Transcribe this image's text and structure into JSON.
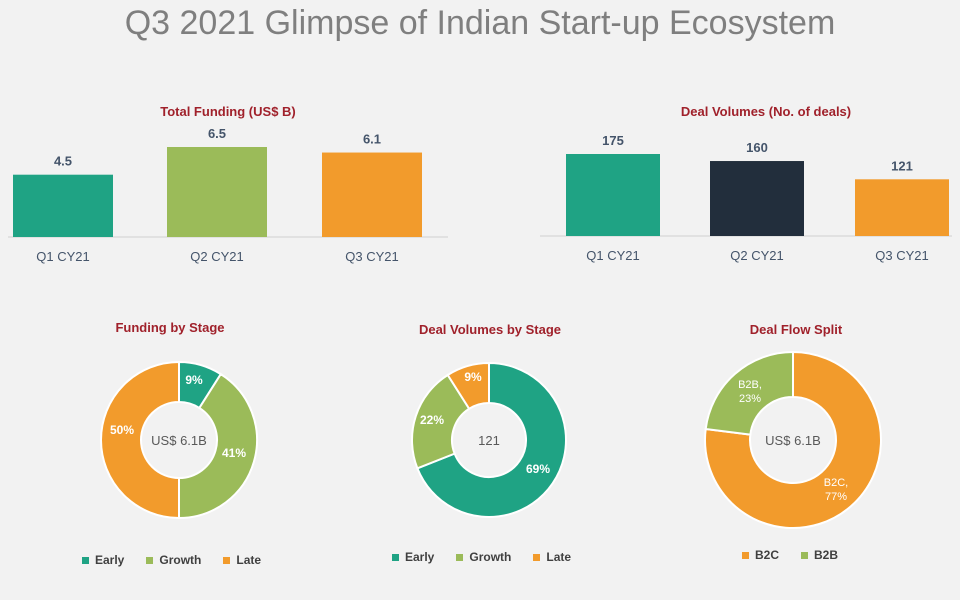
{
  "page": {
    "title": "Q3 2021 Glimpse of Indian Start-up Ecosystem"
  },
  "colors": {
    "teal": "#1fa384",
    "green": "#9bbb59",
    "orange": "#f29b2c",
    "navy": "#222e3c"
  },
  "chart_data": [
    {
      "type": "bar",
      "title": "Total Funding (US$ B)",
      "categories": [
        "Q1 CY21",
        "Q2 CY21",
        "Q3 CY21"
      ],
      "values": [
        4.5,
        6.5,
        6.1
      ],
      "value_labels": [
        "4.5",
        "6.5",
        "6.1"
      ],
      "colors": [
        "#1fa384",
        "#9bbb59",
        "#f29b2c"
      ],
      "ylim": [
        0,
        6.5
      ]
    },
    {
      "type": "bar",
      "title": "Deal Volumes (No. of deals)",
      "categories": [
        "Q1 CY21",
        "Q2 CY21",
        "Q3 CY21"
      ],
      "values": [
        175,
        160,
        121
      ],
      "value_labels": [
        "175",
        "160",
        "121"
      ],
      "colors": [
        "#1fa384",
        "#222e3c",
        "#f29b2c"
      ],
      "ylim": [
        0,
        175
      ]
    },
    {
      "type": "pie",
      "title": "Funding by Stage",
      "center_label": "US$ 6.1B",
      "slices": [
        {
          "name": "Early",
          "value": 9,
          "label": "9%",
          "color": "#1fa384"
        },
        {
          "name": "Growth",
          "value": 41,
          "label": "41%",
          "color": "#9bbb59"
        },
        {
          "name": "Late",
          "value": 50,
          "label": "50%",
          "color": "#f29b2c"
        }
      ],
      "legend": [
        "Early",
        "Growth",
        "Late"
      ]
    },
    {
      "type": "pie",
      "title": "Deal Volumes by Stage",
      "center_label": "121",
      "slices": [
        {
          "name": "Early",
          "value": 69,
          "label": "69%",
          "color": "#1fa384"
        },
        {
          "name": "Growth",
          "value": 22,
          "label": "22%",
          "color": "#9bbb59"
        },
        {
          "name": "Late",
          "value": 9,
          "label": "9%",
          "color": "#f29b2c"
        }
      ],
      "legend": [
        "Early",
        "Growth",
        "Late"
      ]
    },
    {
      "type": "pie",
      "title": "Deal Flow Split",
      "center_label": "US$ 6.1B",
      "slices": [
        {
          "name": "B2C",
          "value": 77,
          "label_line1": "B2C,",
          "label_line2": "77%",
          "color": "#f29b2c"
        },
        {
          "name": "B2B",
          "value": 23,
          "label_line1": "B2B,",
          "label_line2": "23%",
          "color": "#9bbb59"
        }
      ],
      "legend": [
        "B2C",
        "B2B"
      ]
    }
  ]
}
